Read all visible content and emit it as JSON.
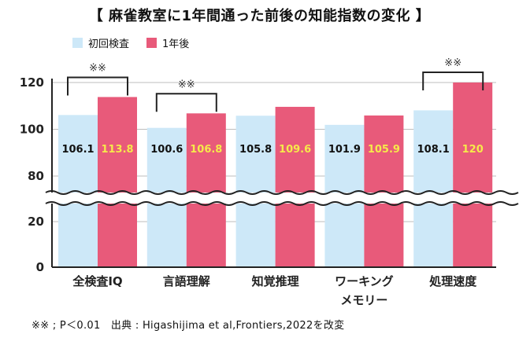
{
  "chart_data": {
    "type": "bar",
    "title": "【 麻雀教室に1年間通った前後の知能指数の変化 】",
    "categories": [
      "全検査IQ",
      "言語理解",
      "知覚推理",
      "ワーキング\nメモリー",
      "処理速度"
    ],
    "series": [
      {
        "name": "初回検査",
        "values": [
          106.1,
          100.6,
          105.8,
          101.9,
          108.1
        ],
        "labels": [
          "106.1",
          "100.6",
          "105.8",
          "101.9",
          "108.1"
        ],
        "color": "#cde8f8",
        "label_color": "#111111"
      },
      {
        "name": "1年後",
        "values": [
          113.8,
          106.8,
          109.6,
          105.9,
          120
        ],
        "labels": [
          "113.8",
          "106.8",
          "109.6",
          "105.9",
          "120"
        ],
        "color": "#e85a7a",
        "label_color": "#f6e94a"
      }
    ],
    "yticks": [
      0,
      20,
      80,
      100,
      120
    ],
    "ylim": [
      0,
      120
    ],
    "axis_break": [
      20,
      80
    ],
    "significance": [
      {
        "category_index": 0,
        "label": "※※"
      },
      {
        "category_index": 1,
        "label": "※※"
      },
      {
        "category_index": 4,
        "label": "※※"
      }
    ],
    "grid": true,
    "legend_position": "top-left",
    "footnote": "※※ ; P＜0.01　出典 : Higashijima et al,Frontiers,2022を改変"
  }
}
